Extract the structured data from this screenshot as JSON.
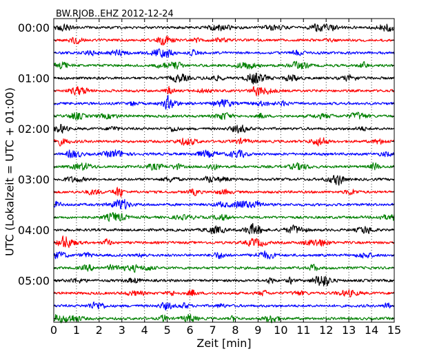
{
  "chart_data": {
    "type": "line",
    "title": "BW.RJOB..EHZ 2012-12-24",
    "xlabel": "Zeit  [min]",
    "ylabel": "UTC (Lokalzeit = UTC + 01:00)",
    "xlim": [
      0,
      15
    ],
    "x_ticks": [
      "0",
      "1",
      "2",
      "3",
      "4",
      "5",
      "6",
      "7",
      "8",
      "9",
      "10",
      "11",
      "12",
      "13",
      "14",
      "15"
    ],
    "y_tick_labels": [
      "00:00",
      "01:00",
      "02:00",
      "03:00",
      "04:00",
      "05:00"
    ],
    "row_minutes": 15,
    "grid": "vertical dotted",
    "rows": 24,
    "trace_colors": [
      "#000000",
      "#ff0000",
      "#0000ff",
      "#008000"
    ],
    "trace_start_times": [
      "00:00",
      "00:15",
      "00:30",
      "00:45",
      "01:00",
      "01:15",
      "01:30",
      "01:45",
      "02:00",
      "02:15",
      "02:30",
      "02:45",
      "03:00",
      "03:15",
      "03:30",
      "03:45",
      "04:00",
      "04:15",
      "04:30",
      "04:45",
      "05:00",
      "05:15",
      "05:30",
      "05:45"
    ]
  }
}
